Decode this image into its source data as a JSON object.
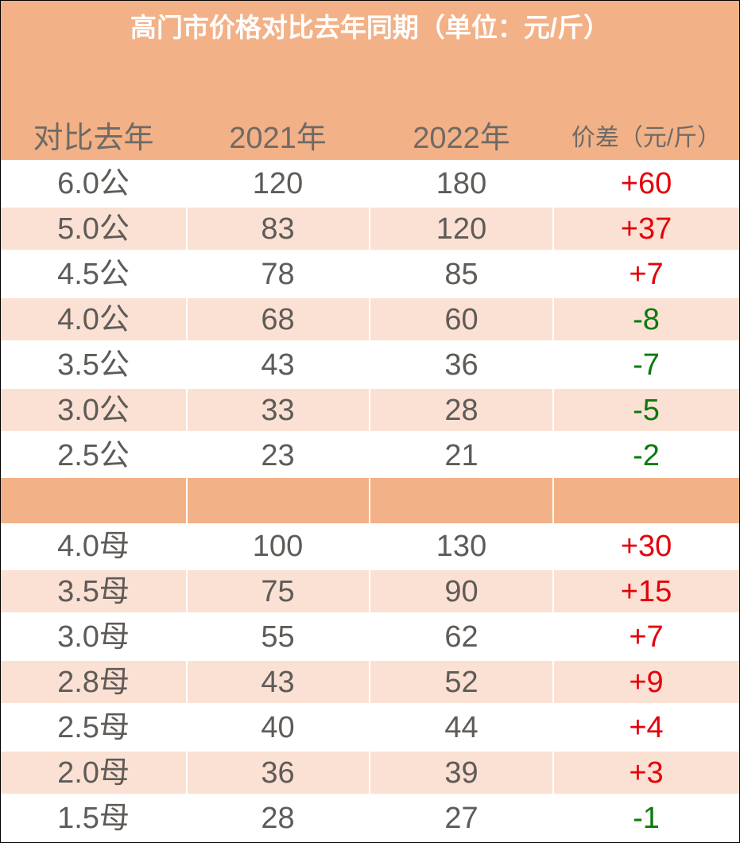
{
  "title": "高门市价格对比去年同期（单位：元/斤）",
  "columns": [
    "对比去年",
    "2021年",
    "2022年",
    "价差（元/斤）"
  ],
  "colors": {
    "header_bg": "#f3b187",
    "shade_bg": "#fbe1d3",
    "positive": "#e4020a",
    "negative": "#0b7a0b",
    "text": "#5f5b58"
  },
  "groups": [
    {
      "rows": [
        {
          "spec": "6.0公",
          "y2021": "120",
          "y2022": "180",
          "diff": "+60"
        },
        {
          "spec": "5.0公",
          "y2021": "83",
          "y2022": "120",
          "diff": "+37"
        },
        {
          "spec": "4.5公",
          "y2021": "78",
          "y2022": "85",
          "diff": "+7"
        },
        {
          "spec": "4.0公",
          "y2021": "68",
          "y2022": "60",
          "diff": "-8"
        },
        {
          "spec": "3.5公",
          "y2021": "43",
          "y2022": "36",
          "diff": "-7"
        },
        {
          "spec": "3.0公",
          "y2021": "33",
          "y2022": "28",
          "diff": "-5"
        },
        {
          "spec": "2.5公",
          "y2021": "23",
          "y2022": "21",
          "diff": "-2"
        }
      ]
    },
    {
      "rows": [
        {
          "spec": "4.0母",
          "y2021": "100",
          "y2022": "130",
          "diff": "+30"
        },
        {
          "spec": "3.5母",
          "y2021": "75",
          "y2022": "90",
          "diff": "+15"
        },
        {
          "spec": "3.0母",
          "y2021": "55",
          "y2022": "62",
          "diff": "+7"
        },
        {
          "spec": "2.8母",
          "y2021": "43",
          "y2022": "52",
          "diff": "+9"
        },
        {
          "spec": "2.5母",
          "y2021": "40",
          "y2022": "44",
          "diff": "+4"
        },
        {
          "spec": "2.0母",
          "y2021": "36",
          "y2022": "39",
          "diff": "+3"
        },
        {
          "spec": "1.5母",
          "y2021": "28",
          "y2022": "27",
          "diff": "-1"
        }
      ]
    }
  ]
}
